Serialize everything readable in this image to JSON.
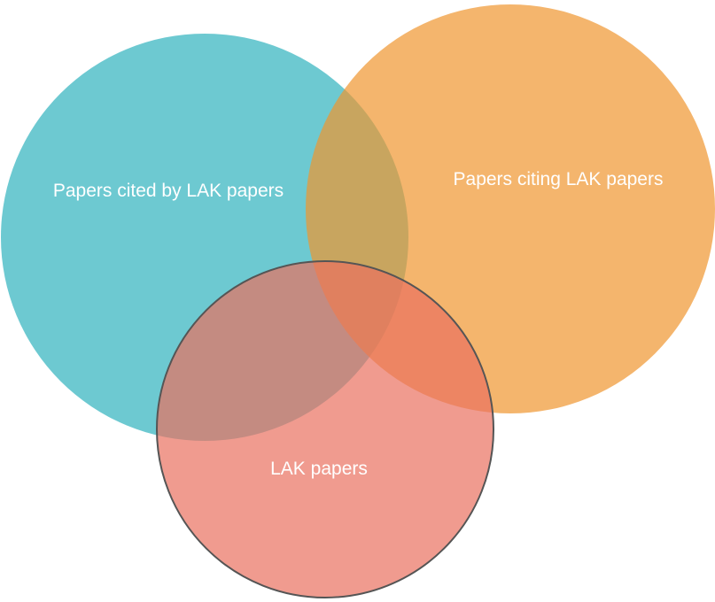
{
  "venn": {
    "sets": [
      {
        "id": "cited",
        "label": "Papers cited by LAK papers",
        "color": "#2fb2bd"
      },
      {
        "id": "citing",
        "label": "Papers citing LAK papers",
        "color": "#f0962f"
      },
      {
        "id": "lak",
        "label": "LAK papers",
        "color": "#e97060"
      }
    ],
    "highlighted_set": "lak",
    "outline_color": "#555555"
  }
}
